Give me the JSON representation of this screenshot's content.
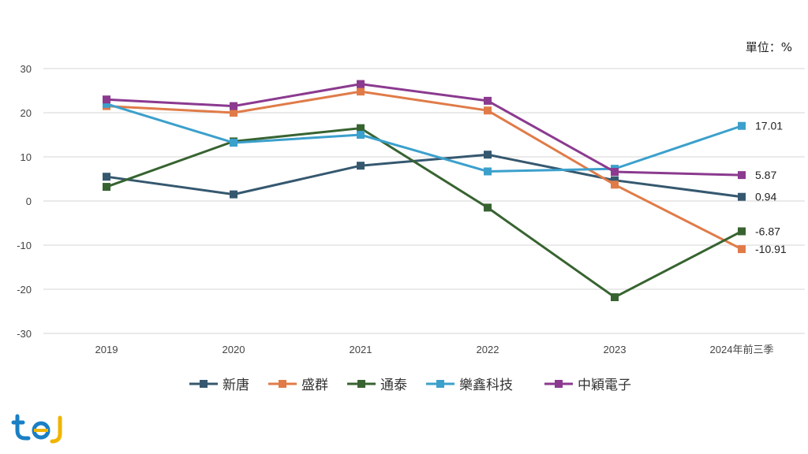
{
  "unit_label": "單位：%",
  "logo_text": "tej",
  "chart_data": {
    "type": "line",
    "categories": [
      "2019",
      "2020",
      "2021",
      "2022",
      "2023",
      "2024年前三季"
    ],
    "ylim": [
      -30,
      30
    ],
    "yticks": [
      30,
      20,
      10,
      0,
      -10,
      -20,
      -30
    ],
    "grid": true,
    "legend_position": "bottom",
    "series": [
      {
        "name": "新唐",
        "color": "#35586f",
        "values": [
          5.5,
          1.5,
          8.0,
          10.5,
          4.7,
          0.94
        ],
        "end_label": "0.94"
      },
      {
        "name": "盛群",
        "color": "#e07b48",
        "values": [
          21.5,
          20.0,
          24.8,
          20.5,
          3.7,
          -10.91
        ],
        "end_label": "-10.91"
      },
      {
        "name": "通泰",
        "color": "#376330",
        "values": [
          3.2,
          13.5,
          16.5,
          -1.5,
          -21.8,
          -6.87
        ],
        "end_label": "-6.87"
      },
      {
        "name": "樂鑫科技",
        "color": "#3ba0cc",
        "values": [
          22.0,
          13.2,
          15.0,
          6.7,
          7.3,
          17.01
        ],
        "end_label": "17.01"
      },
      {
        "name": "中穎電子",
        "color": "#8b3a8f",
        "values": [
          23.0,
          21.5,
          26.5,
          22.7,
          6.6,
          5.87
        ],
        "end_label": "5.87"
      }
    ]
  }
}
